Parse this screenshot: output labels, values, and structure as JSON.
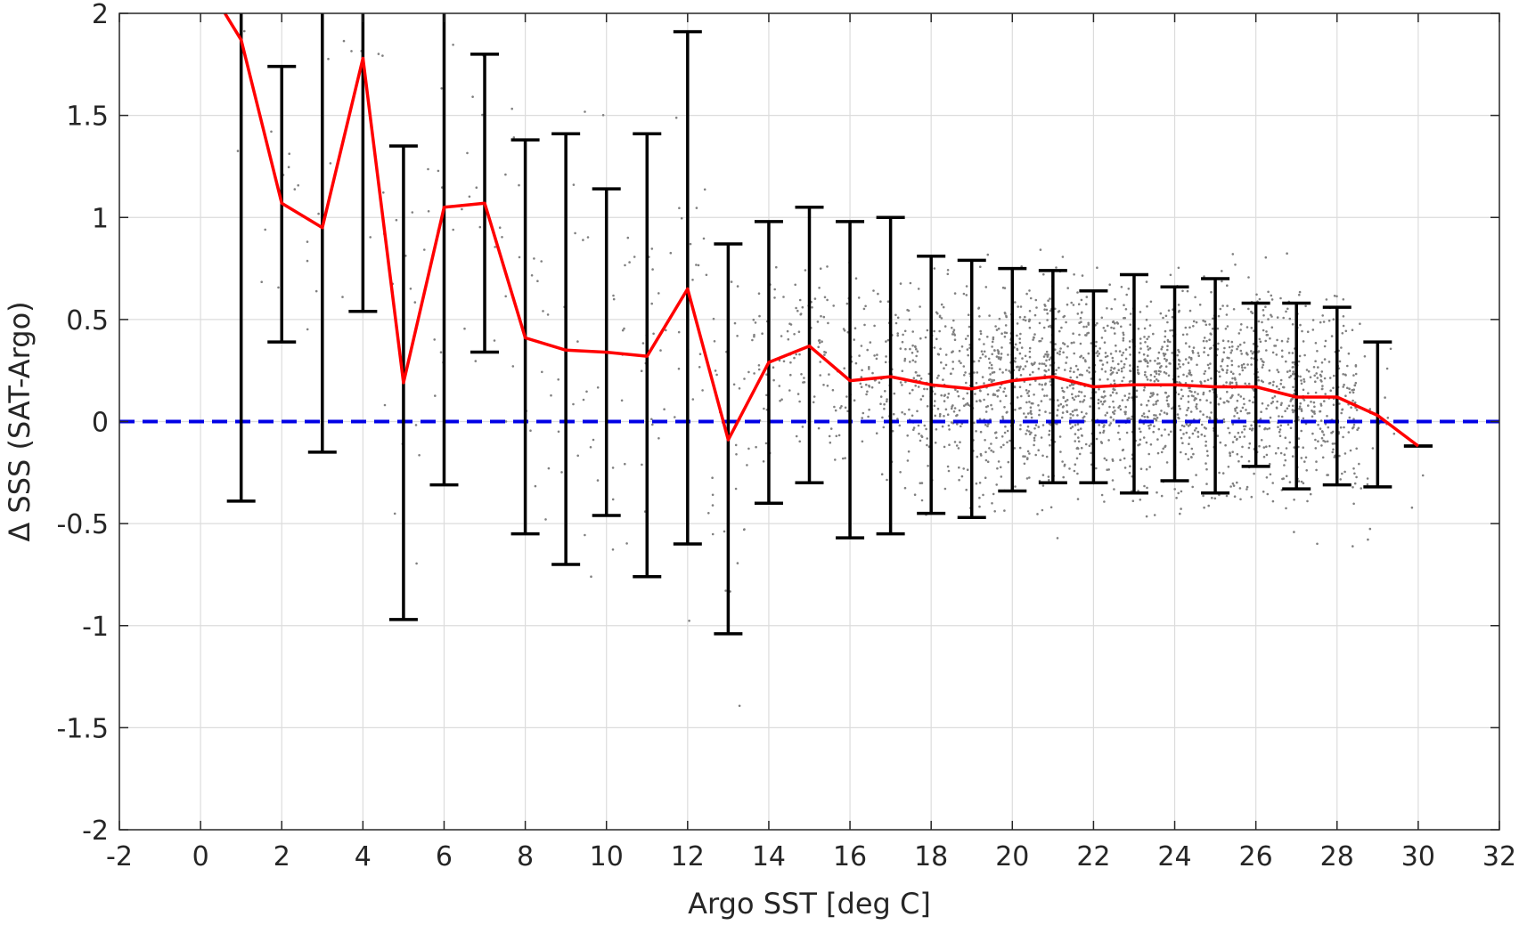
{
  "chart_data": {
    "type": "line",
    "title": "",
    "xlabel": "Argo SST [deg C]",
    "ylabel": "Δ SSS (SAT-Argo)",
    "xlim": [
      -2,
      32
    ],
    "ylim": [
      -2,
      2
    ],
    "xticks": [
      -2,
      0,
      2,
      4,
      6,
      8,
      10,
      12,
      14,
      16,
      18,
      20,
      22,
      24,
      26,
      28,
      30,
      32
    ],
    "yticks": [
      -2,
      -1.5,
      -1,
      -0.5,
      0,
      0.5,
      1,
      1.5,
      2
    ],
    "grid": true,
    "legend": "none",
    "colors": {
      "mean_line": "#ff0000",
      "zero_line": "#0000e6",
      "error_bars": "#000000",
      "scatter": "#808080"
    },
    "mean_line": {
      "x": [
        0.6,
        1,
        2,
        3,
        4,
        5,
        6,
        7,
        8,
        9,
        10,
        11,
        12,
        13,
        14,
        15,
        16,
        17,
        18,
        19,
        20,
        21,
        22,
        23,
        24,
        25,
        26,
        27,
        28,
        29,
        30
      ],
      "y": [
        2.0,
        1.87,
        1.07,
        0.95,
        1.78,
        0.19,
        1.05,
        1.07,
        0.41,
        0.35,
        0.34,
        0.32,
        0.65,
        -0.09,
        0.29,
        0.37,
        0.2,
        0.22,
        0.18,
        0.16,
        0.2,
        0.22,
        0.17,
        0.18,
        0.18,
        0.17,
        0.17,
        0.12,
        0.12,
        0.03,
        -0.12
      ]
    },
    "zero_line": {
      "y": 0
    },
    "error_bars": {
      "x": [
        1,
        2,
        3,
        4,
        5,
        6,
        7,
        8,
        9,
        10,
        11,
        12,
        13,
        14,
        15,
        16,
        17,
        18,
        19,
        20,
        21,
        22,
        23,
        24,
        25,
        26,
        27,
        28,
        29,
        30
      ],
      "lower": [
        -0.39,
        0.39,
        -0.15,
        0.54,
        -0.97,
        -0.31,
        0.34,
        -0.55,
        -0.7,
        -0.46,
        -0.76,
        -0.6,
        -1.04,
        -0.4,
        -0.3,
        -0.57,
        -0.55,
        -0.45,
        -0.47,
        -0.34,
        -0.3,
        -0.3,
        -0.35,
        -0.29,
        -0.35,
        -0.22,
        -0.33,
        -0.31,
        -0.32,
        -0.12
      ],
      "upper": [
        2.0,
        1.74,
        2.0,
        2.0,
        1.35,
        2.0,
        1.8,
        1.38,
        1.41,
        1.14,
        1.41,
        1.91,
        0.87,
        0.98,
        1.05,
        0.98,
        1.0,
        0.81,
        0.79,
        0.75,
        0.74,
        0.64,
        0.72,
        0.66,
        0.7,
        0.58,
        0.58,
        0.56,
        0.39,
        -0.12
      ]
    },
    "scatter": {
      "note_density_per_degree": [
        0,
        6,
        10,
        8,
        8,
        14,
        14,
        14,
        18,
        18,
        20,
        22,
        22,
        30,
        40,
        60,
        60,
        80,
        120,
        160,
        200,
        200,
        200,
        200,
        200,
        190,
        180,
        170,
        150,
        20,
        2
      ]
    }
  }
}
